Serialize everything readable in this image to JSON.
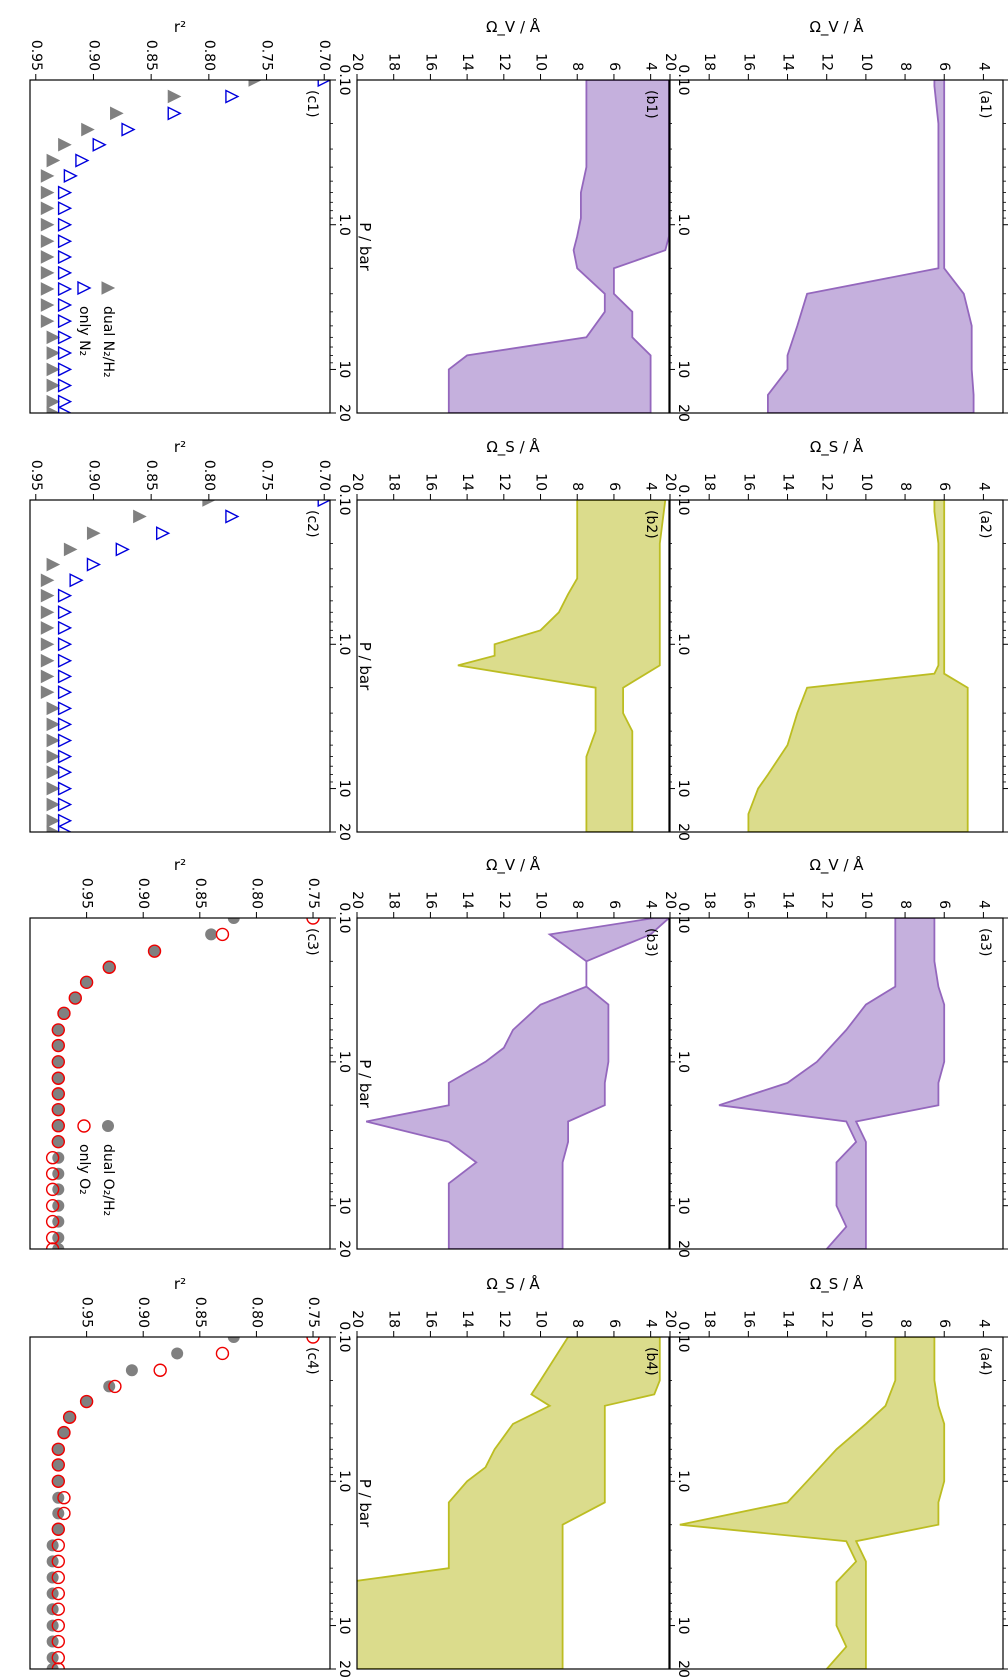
{
  "figure": {
    "shared_x_label": "P / bar",
    "x_ticks": [
      "0.10",
      "1.0",
      "10",
      "20"
    ],
    "y_ticks_omega": [
      "4",
      "6",
      "8",
      "10",
      "12",
      "14",
      "16",
      "18",
      "20"
    ]
  },
  "chart_data": [
    {
      "id": "a1",
      "panel_label": "(a1)",
      "type": "area",
      "color": "#9467bd",
      "fill": "#c5b0dd",
      "ylabel": "Ω_V / Å",
      "xscale": "log",
      "xlim": [
        0.1,
        20
      ],
      "ylim": [
        3,
        20
      ],
      "x": [
        0.1,
        0.11,
        0.2,
        0.4,
        0.6,
        0.8,
        1.0,
        1.4,
        1.6,
        2.0,
        3.0,
        5.0,
        8.0,
        10,
        15,
        20
      ],
      "upper": [
        6.5,
        6.5,
        6.3,
        6.3,
        6.3,
        6.3,
        6.3,
        6.3,
        6.3,
        6.3,
        13,
        13.5,
        14,
        14,
        15,
        15
      ],
      "lower": [
        6.0,
        6.0,
        6.0,
        6.0,
        6.0,
        6.0,
        6.0,
        6.0,
        6.0,
        6.0,
        5.0,
        4.6,
        4.6,
        4.6,
        4.5,
        4.5
      ]
    },
    {
      "id": "a2",
      "panel_label": "(a2)",
      "type": "area",
      "color": "#bcbd22",
      "fill": "#dbdc8c",
      "ylabel": "Ω_S / Å",
      "xscale": "log",
      "xlim": [
        0.1,
        20
      ],
      "ylim": [
        3,
        20
      ],
      "x": [
        0.1,
        0.12,
        0.2,
        0.4,
        0.6,
        0.8,
        1.0,
        1.4,
        1.6,
        2.0,
        3.0,
        5.0,
        8.0,
        10,
        15,
        20
      ],
      "upper": [
        6.5,
        6.5,
        6.3,
        6.3,
        6.3,
        6.3,
        6.3,
        6.3,
        6.5,
        13,
        13.5,
        14,
        15,
        15.5,
        16,
        16
      ],
      "lower": [
        6.0,
        6.0,
        6.0,
        6.0,
        6.0,
        6.0,
        6.0,
        6.0,
        6.0,
        4.8,
        4.8,
        4.8,
        4.8,
        4.8,
        4.8,
        4.8
      ]
    },
    {
      "id": "a3",
      "panel_label": "(a3)",
      "type": "area",
      "color": "#9467bd",
      "fill": "#c5b0dd",
      "ylabel": "Ω_V / Å",
      "xscale": "log",
      "xlim": [
        0.1,
        20
      ],
      "ylim": [
        3,
        20
      ],
      "x": [
        0.1,
        0.2,
        0.3,
        0.4,
        0.6,
        1.0,
        1.4,
        2.0,
        2.6,
        3.6,
        5.0,
        7.0,
        10,
        14,
        20
      ],
      "upper": [
        8.5,
        8.5,
        8.5,
        10,
        11,
        12.5,
        14,
        17.5,
        11,
        10.5,
        11.5,
        11.5,
        11.5,
        11,
        12
      ],
      "lower": [
        6.5,
        6.5,
        6.3,
        6.0,
        6.0,
        6.0,
        6.3,
        6.3,
        10.5,
        10,
        10,
        10,
        10,
        10,
        10
      ]
    },
    {
      "id": "a4",
      "panel_label": "(a4)",
      "type": "area",
      "color": "#bcbd22",
      "fill": "#dbdc8c",
      "ylabel": "Ω_S / Å",
      "xscale": "log",
      "xlim": [
        0.1,
        20
      ],
      "ylim": [
        3,
        20
      ],
      "x": [
        0.1,
        0.2,
        0.3,
        0.4,
        0.6,
        1.0,
        1.4,
        2.0,
        2.6,
        3.6,
        5.0,
        7.0,
        10,
        14,
        20
      ],
      "upper": [
        8.5,
        8.5,
        9,
        10,
        11.5,
        13,
        14,
        19.5,
        11,
        10.5,
        11.5,
        11.5,
        11.5,
        11,
        12
      ],
      "lower": [
        6.5,
        6.5,
        6.3,
        6.0,
        6.0,
        6.0,
        6.3,
        6.3,
        10.5,
        10,
        10,
        10,
        10,
        10,
        10
      ]
    },
    {
      "id": "b1",
      "panel_label": "(b1)",
      "type": "area",
      "color": "#9467bd",
      "fill": "#c5b0dd",
      "ylabel": "Ω_V / Å",
      "xscale": "log",
      "xlim": [
        0.1,
        20
      ],
      "ylim": [
        3,
        20
      ],
      "x": [
        0.1,
        0.2,
        0.4,
        0.6,
        0.9,
        1.2,
        1.5,
        2.0,
        3.0,
        4.0,
        6.0,
        8.0,
        10,
        15,
        20
      ],
      "upper": [
        7.5,
        7.5,
        7.5,
        7.8,
        7.8,
        8.0,
        8.2,
        8.0,
        6.5,
        6.5,
        7.5,
        14,
        15,
        15,
        15
      ],
      "lower": [
        3.0,
        3.0,
        3.0,
        3.0,
        3.0,
        3.0,
        3.2,
        6.0,
        6.0,
        5.0,
        5.0,
        4.0,
        4.0,
        4.0,
        4.0
      ]
    },
    {
      "id": "b2",
      "panel_label": "(b2)",
      "type": "area",
      "color": "#bcbd22",
      "fill": "#dbdc8c",
      "ylabel": "Ω_S / Å",
      "xscale": "log",
      "xlim": [
        0.1,
        20
      ],
      "ylim": [
        3,
        20
      ],
      "x": [
        0.1,
        0.2,
        0.35,
        0.45,
        0.6,
        0.8,
        1.0,
        1.2,
        1.4,
        2.0,
        3.0,
        4.0,
        6.0,
        10,
        20
      ],
      "upper": [
        8,
        8,
        8,
        8.5,
        9,
        10,
        12.5,
        12.5,
        14.5,
        7,
        7,
        7,
        7.5,
        7.5,
        7.5
      ],
      "lower": [
        3.2,
        3.5,
        3.5,
        3.5,
        3.5,
        3.5,
        3.5,
        3.5,
        3.5,
        5.5,
        5.5,
        5,
        5,
        5,
        5
      ]
    },
    {
      "id": "b3",
      "panel_label": "(b3)",
      "type": "area",
      "color": "#9467bd",
      "fill": "#c5b0dd",
      "ylabel": "Ω_V / Å",
      "xscale": "log",
      "xlim": [
        0.1,
        20
      ],
      "ylim": [
        3,
        20
      ],
      "x": [
        0.1,
        0.13,
        0.2,
        0.3,
        0.4,
        0.6,
        0.8,
        1.0,
        1.4,
        2.0,
        2.6,
        3.6,
        5.0,
        7.0,
        10,
        20
      ],
      "upper": [
        3.8,
        9.5,
        7.5,
        7.5,
        10,
        11.5,
        12,
        13,
        15,
        15,
        19.5,
        15,
        13.5,
        15,
        15,
        15
      ],
      "lower": [
        3.0,
        4.0,
        7.5,
        7.5,
        6.3,
        6.3,
        6.3,
        6.3,
        6.5,
        6.5,
        8.5,
        8.5,
        8.8,
        8.8,
        8.8,
        8.8
      ]
    },
    {
      "id": "b4",
      "panel_label": "(b4)",
      "type": "area",
      "color": "#bcbd22",
      "fill": "#dbdc8c",
      "ylabel": "Ω_S / Å",
      "xscale": "log",
      "xlim": [
        0.1,
        20
      ],
      "ylim": [
        3,
        20
      ],
      "x": [
        0.1,
        0.2,
        0.25,
        0.3,
        0.4,
        0.6,
        0.8,
        1.0,
        1.4,
        2.0,
        3.0,
        4.0,
        5.0,
        6.0,
        10,
        20
      ],
      "upper": [
        8.5,
        10,
        10.5,
        9.5,
        11.5,
        12.5,
        13,
        14,
        15,
        15,
        15,
        15,
        20.5,
        20.5,
        20.5,
        20.5
      ],
      "lower": [
        3.5,
        3.5,
        3.8,
        6.5,
        6.5,
        6.5,
        6.5,
        6.5,
        6.5,
        8.8,
        8.8,
        8.8,
        8.8,
        8.8,
        8.8,
        8.8
      ]
    },
    {
      "id": "c1",
      "panel_label": "(c1)",
      "type": "scatter",
      "ylabel": "r²",
      "xscale": "log",
      "xlim": [
        0.1,
        20
      ],
      "ylim": [
        0.695,
        0.955
      ],
      "y_ticks": [
        "0.70",
        "0.75",
        "0.80",
        "0.85",
        "0.90",
        "0.95"
      ],
      "legend": [
        "dual N₂/H₂",
        "only N₂"
      ],
      "series": [
        {
          "name": "dual N₂/H₂",
          "marker": "filled-triangle",
          "color": "#808080",
          "x": [
            0.1,
            0.13,
            0.17,
            0.22,
            0.28,
            0.36,
            0.46,
            0.6,
            0.77,
            1.0,
            1.3,
            1.67,
            2.15,
            2.78,
            3.59,
            4.64,
            6.0,
            7.7,
            10,
            12.9,
            16.7,
            20
          ],
          "y": [
            0.76,
            0.83,
            0.88,
            0.905,
            0.925,
            0.935,
            0.94,
            0.94,
            0.94,
            0.94,
            0.94,
            0.94,
            0.94,
            0.94,
            0.94,
            0.94,
            0.935,
            0.935,
            0.935,
            0.935,
            0.935,
            0.935
          ]
        },
        {
          "name": "only N₂",
          "marker": "open-triangle",
          "color": "#0000dd",
          "x": [
            0.1,
            0.13,
            0.17,
            0.22,
            0.28,
            0.36,
            0.46,
            0.6,
            0.77,
            1.0,
            1.3,
            1.67,
            2.15,
            2.78,
            3.59,
            4.64,
            6.0,
            7.7,
            10,
            12.9,
            16.7,
            20
          ],
          "y": [
            0.7,
            0.78,
            0.83,
            0.87,
            0.895,
            0.91,
            0.92,
            0.925,
            0.925,
            0.925,
            0.925,
            0.925,
            0.925,
            0.925,
            0.925,
            0.925,
            0.925,
            0.925,
            0.925,
            0.925,
            0.925,
            0.925
          ]
        }
      ]
    },
    {
      "id": "c2",
      "panel_label": "(c2)",
      "type": "scatter",
      "ylabel": "r²",
      "xscale": "log",
      "xlim": [
        0.1,
        20
      ],
      "ylim": [
        0.695,
        0.955
      ],
      "y_ticks": [
        "0.70",
        "0.75",
        "0.80",
        "0.85",
        "0.90",
        "0.95"
      ],
      "series": [
        {
          "name": "dual N₂/H₂",
          "marker": "filled-triangle",
          "color": "#808080",
          "x": [
            0.1,
            0.13,
            0.17,
            0.22,
            0.28,
            0.36,
            0.46,
            0.6,
            0.77,
            1.0,
            1.3,
            1.67,
            2.15,
            2.78,
            3.59,
            4.64,
            6.0,
            7.7,
            10,
            12.9,
            16.7,
            20
          ],
          "y": [
            0.8,
            0.86,
            0.9,
            0.92,
            0.935,
            0.94,
            0.94,
            0.94,
            0.94,
            0.94,
            0.94,
            0.94,
            0.94,
            0.935,
            0.935,
            0.935,
            0.935,
            0.935,
            0.935,
            0.935,
            0.935,
            0.935
          ]
        },
        {
          "name": "only N₂",
          "marker": "open-triangle",
          "color": "#0000dd",
          "x": [
            0.1,
            0.13,
            0.17,
            0.22,
            0.28,
            0.36,
            0.46,
            0.6,
            0.77,
            1.0,
            1.3,
            1.67,
            2.15,
            2.78,
            3.59,
            4.64,
            6.0,
            7.7,
            10,
            12.9,
            16.7,
            20
          ],
          "y": [
            0.7,
            0.78,
            0.84,
            0.875,
            0.9,
            0.915,
            0.925,
            0.925,
            0.925,
            0.925,
            0.925,
            0.925,
            0.925,
            0.925,
            0.925,
            0.925,
            0.925,
            0.925,
            0.925,
            0.925,
            0.925,
            0.925
          ]
        }
      ]
    },
    {
      "id": "c3",
      "panel_label": "(c3)",
      "type": "scatter",
      "ylabel": "r²",
      "xscale": "log",
      "xlim": [
        0.1,
        20
      ],
      "ylim": [
        0.735,
        1.0
      ],
      "y_ticks": [
        "0.75",
        "0.80",
        "0.85",
        "0.90",
        "0.95"
      ],
      "legend": [
        "dual O₂/H₂",
        "only O₂"
      ],
      "series": [
        {
          "name": "dual O₂/H₂",
          "marker": "filled-circle",
          "color": "#808080",
          "x": [
            0.1,
            0.13,
            0.17,
            0.22,
            0.28,
            0.36,
            0.46,
            0.6,
            0.77,
            1.0,
            1.3,
            1.67,
            2.15,
            2.78,
            3.59,
            4.64,
            6.0,
            7.7,
            10,
            12.9,
            16.7,
            20
          ],
          "y": [
            0.82,
            0.84,
            0.89,
            0.93,
            0.95,
            0.96,
            0.97,
            0.975,
            0.975,
            0.975,
            0.975,
            0.975,
            0.975,
            0.975,
            0.975,
            0.975,
            0.975,
            0.975,
            0.975,
            0.975,
            0.975,
            0.975
          ]
        },
        {
          "name": "only O₂",
          "marker": "open-circle",
          "color": "#ee0000",
          "x": [
            0.1,
            0.13,
            0.17,
            0.22,
            0.28,
            0.36,
            0.46,
            0.6,
            0.77,
            1.0,
            1.3,
            1.67,
            2.15,
            2.78,
            3.59,
            4.64,
            6.0,
            7.7,
            10,
            12.9,
            16.7,
            20
          ],
          "y": [
            0.75,
            0.83,
            0.89,
            0.93,
            0.95,
            0.96,
            0.97,
            0.975,
            0.975,
            0.975,
            0.975,
            0.975,
            0.975,
            0.975,
            0.975,
            0.98,
            0.98,
            0.98,
            0.98,
            0.98,
            0.98,
            0.98
          ]
        }
      ]
    },
    {
      "id": "c4",
      "panel_label": "(c4)",
      "type": "scatter",
      "ylabel": "r²",
      "xscale": "log",
      "xlim": [
        0.1,
        20
      ],
      "ylim": [
        0.735,
        1.0
      ],
      "y_ticks": [
        "0.75",
        "0.80",
        "0.85",
        "0.90",
        "0.95"
      ],
      "series": [
        {
          "name": "dual O₂/H₂",
          "marker": "filled-circle",
          "color": "#808080",
          "x": [
            0.1,
            0.13,
            0.17,
            0.22,
            0.28,
            0.36,
            0.46,
            0.6,
            0.77,
            1.0,
            1.3,
            1.67,
            2.15,
            2.78,
            3.59,
            4.64,
            6.0,
            7.7,
            10,
            12.9,
            16.7,
            20
          ],
          "y": [
            0.82,
            0.87,
            0.91,
            0.93,
            0.95,
            0.965,
            0.97,
            0.975,
            0.975,
            0.975,
            0.975,
            0.975,
            0.975,
            0.98,
            0.98,
            0.98,
            0.98,
            0.98,
            0.98,
            0.98,
            0.98,
            0.98
          ]
        },
        {
          "name": "only O₂",
          "marker": "open-circle",
          "color": "#ee0000",
          "x": [
            0.1,
            0.13,
            0.17,
            0.22,
            0.28,
            0.36,
            0.46,
            0.6,
            0.77,
            1.0,
            1.3,
            1.67,
            2.15,
            2.78,
            3.59,
            4.64,
            6.0,
            7.7,
            10,
            12.9,
            16.7,
            20
          ],
          "y": [
            0.75,
            0.83,
            0.885,
            0.925,
            0.95,
            0.965,
            0.97,
            0.975,
            0.975,
            0.975,
            0.97,
            0.97,
            0.975,
            0.975,
            0.975,
            0.975,
            0.975,
            0.975,
            0.975,
            0.975,
            0.975,
            0.975
          ]
        }
      ]
    }
  ]
}
